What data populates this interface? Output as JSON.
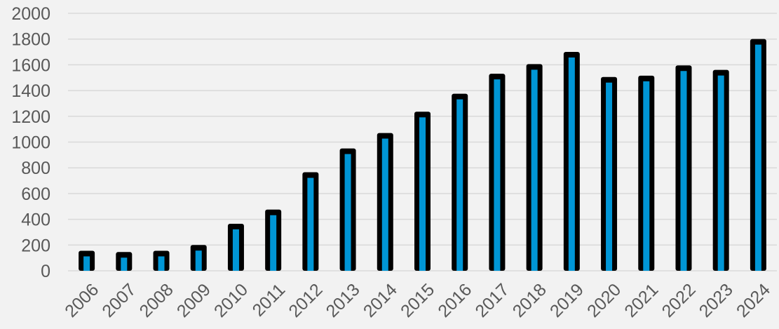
{
  "chart_data": {
    "type": "bar",
    "title": "",
    "xlabel": "",
    "ylabel": "",
    "categories": [
      "2006",
      "2007",
      "2008",
      "2009",
      "2010",
      "2011",
      "2012",
      "2013",
      "2014",
      "2015",
      "2016",
      "2017",
      "2018",
      "2019",
      "2020",
      "2021",
      "2022",
      "2023",
      "2024"
    ],
    "values": [
      150,
      140,
      150,
      195,
      360,
      470,
      760,
      945,
      1065,
      1230,
      1370,
      1525,
      1600,
      1695,
      1500,
      1510,
      1590,
      1555,
      1795
    ],
    "ylim": [
      0,
      2000
    ],
    "yticks": [
      "0",
      "200",
      "400",
      "600",
      "800",
      "1000",
      "1200",
      "1400",
      "1600",
      "1800",
      "2000"
    ],
    "grid": true,
    "legend": "none",
    "colors": {
      "bar_fill": "#0096d6",
      "bar_outline": "#000000",
      "grid": "#d9d9d9",
      "background": "#f2f2f2",
      "text": "#595959"
    }
  }
}
